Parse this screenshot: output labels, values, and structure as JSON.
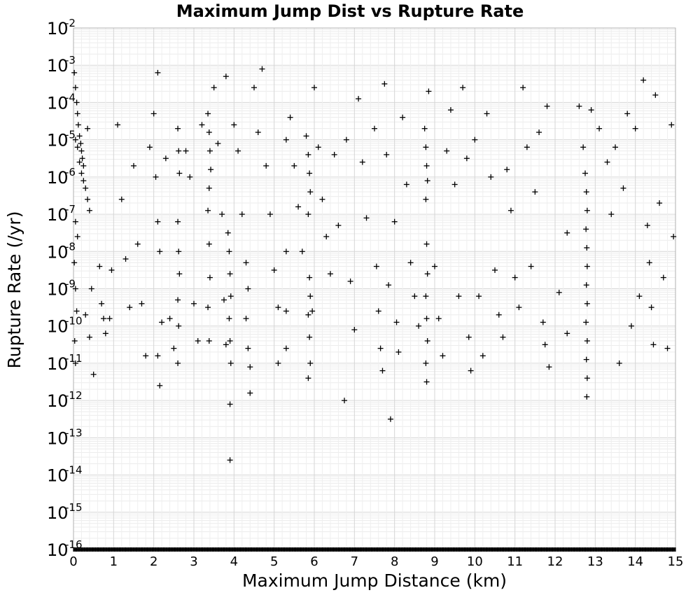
{
  "chart_data": {
    "type": "scatter",
    "title": "Maximum Jump Dist vs Rupture Rate",
    "xlabel": "Maximum Jump Distance (km)",
    "ylabel": "Rupture Rate (/yr)",
    "xlim": [
      0,
      15
    ],
    "ylim_log10": [
      -16,
      -2
    ],
    "y_scale": "log",
    "grid": true,
    "marker": "plus",
    "marker_color": "#000000",
    "x_ticks": [
      "0",
      "1",
      "2",
      "3",
      "4",
      "5",
      "6",
      "7",
      "8",
      "9",
      "10",
      "11",
      "12",
      "13",
      "14",
      "15"
    ],
    "y_ticks": [
      {
        "base": "10",
        "exp": "-2"
      },
      {
        "base": "10",
        "exp": "-3"
      },
      {
        "base": "10",
        "exp": "-4"
      },
      {
        "base": "10",
        "exp": "-5"
      },
      {
        "base": "10",
        "exp": "-6"
      },
      {
        "base": "10",
        "exp": "-7"
      },
      {
        "base": "10",
        "exp": "-8"
      },
      {
        "base": "10",
        "exp": "-9"
      },
      {
        "base": "10",
        "exp": "-10"
      },
      {
        "base": "10",
        "exp": "-11"
      },
      {
        "base": "10",
        "exp": "-12"
      },
      {
        "base": "10",
        "exp": "-13"
      },
      {
        "base": "10",
        "exp": "-14"
      },
      {
        "base": "10",
        "exp": "-15"
      },
      {
        "base": "10",
        "exp": "-16"
      }
    ],
    "points_log10_rate": [
      [
        0.02,
        -3.2
      ],
      [
        0.05,
        -3.6
      ],
      [
        0.08,
        -4.0
      ],
      [
        0.1,
        -4.3
      ],
      [
        0.12,
        -4.6
      ],
      [
        0.15,
        -4.9
      ],
      [
        0.18,
        -5.1
      ],
      [
        0.2,
        -5.3
      ],
      [
        0.22,
        -5.5
      ],
      [
        0.25,
        -5.7
      ],
      [
        0.05,
        -5.0
      ],
      [
        0.1,
        -5.2
      ],
      [
        0.15,
        -5.6
      ],
      [
        0.2,
        -5.9
      ],
      [
        0.25,
        -6.1
      ],
      [
        0.3,
        -6.3
      ],
      [
        0.35,
        -6.6
      ],
      [
        0.4,
        -6.9
      ],
      [
        0.05,
        -7.2
      ],
      [
        0.1,
        -7.6
      ],
      [
        0.02,
        -8.3
      ],
      [
        0.05,
        -9.0
      ],
      [
        0.08,
        -9.6
      ],
      [
        0.03,
        -10.4
      ],
      [
        0.05,
        -11.0
      ],
      [
        0.3,
        -9.7
      ],
      [
        0.45,
        -9.0
      ],
      [
        0.5,
        -11.3
      ],
      [
        0.4,
        -10.3
      ],
      [
        0.35,
        -4.7
      ],
      [
        0.65,
        -8.4
      ],
      [
        0.7,
        -9.4
      ],
      [
        0.75,
        -9.8
      ],
      [
        0.8,
        -10.2
      ],
      [
        0.9,
        -9.8
      ],
      [
        0.95,
        -8.5
      ],
      [
        1.1,
        -4.6
      ],
      [
        1.2,
        -6.6
      ],
      [
        1.3,
        -8.2
      ],
      [
        1.4,
        -9.5
      ],
      [
        1.5,
        -5.7
      ],
      [
        1.6,
        -7.8
      ],
      [
        1.7,
        -9.4
      ],
      [
        1.8,
        -10.8
      ],
      [
        1.9,
        -5.2
      ],
      [
        2.0,
        -4.3
      ],
      [
        2.05,
        -6.0
      ],
      [
        2.1,
        -7.2
      ],
      [
        2.15,
        -8.0
      ],
      [
        2.2,
        -9.9
      ],
      [
        2.1,
        -10.8
      ],
      [
        2.15,
        -11.6
      ],
      [
        2.1,
        -3.2
      ],
      [
        2.3,
        -5.5
      ],
      [
        2.4,
        -9.8
      ],
      [
        2.5,
        -10.6
      ],
      [
        2.6,
        -4.7
      ],
      [
        2.62,
        -5.3
      ],
      [
        2.64,
        -5.9
      ],
      [
        2.6,
        -7.2
      ],
      [
        2.62,
        -8.0
      ],
      [
        2.64,
        -8.6
      ],
      [
        2.6,
        -9.3
      ],
      [
        2.62,
        -10.0
      ],
      [
        2.6,
        -11.0
      ],
      [
        2.8,
        -5.3
      ],
      [
        2.9,
        -6.0
      ],
      [
        3.0,
        -9.4
      ],
      [
        3.1,
        -10.4
      ],
      [
        3.2,
        -4.6
      ],
      [
        3.35,
        -4.3
      ],
      [
        3.38,
        -4.8
      ],
      [
        3.4,
        -5.3
      ],
      [
        3.42,
        -5.8
      ],
      [
        3.38,
        -6.3
      ],
      [
        3.35,
        -6.9
      ],
      [
        3.38,
        -7.8
      ],
      [
        3.4,
        -8.7
      ],
      [
        3.35,
        -9.5
      ],
      [
        3.38,
        -10.4
      ],
      [
        3.5,
        -3.6
      ],
      [
        3.6,
        -5.1
      ],
      [
        3.7,
        -7.0
      ],
      [
        3.75,
        -9.3
      ],
      [
        3.8,
        -10.5
      ],
      [
        3.8,
        -3.3
      ],
      [
        3.85,
        -7.5
      ],
      [
        3.88,
        -8.0
      ],
      [
        3.9,
        -8.6
      ],
      [
        3.92,
        -9.2
      ],
      [
        3.88,
        -9.8
      ],
      [
        3.9,
        -10.4
      ],
      [
        3.92,
        -11.0
      ],
      [
        3.9,
        -12.1
      ],
      [
        3.9,
        -13.6
      ],
      [
        4.0,
        -4.6
      ],
      [
        4.1,
        -5.3
      ],
      [
        4.2,
        -7.0
      ],
      [
        4.3,
        -8.3
      ],
      [
        4.35,
        -9.0
      ],
      [
        4.3,
        -9.8
      ],
      [
        4.35,
        -10.6
      ],
      [
        4.4,
        -11.1
      ],
      [
        4.4,
        -11.8
      ],
      [
        4.5,
        -3.6
      ],
      [
        4.6,
        -4.8
      ],
      [
        4.7,
        -3.1
      ],
      [
        4.8,
        -5.7
      ],
      [
        4.9,
        -7.0
      ],
      [
        5.0,
        -8.5
      ],
      [
        5.1,
        -9.5
      ],
      [
        5.1,
        -11.0
      ],
      [
        5.3,
        -5.0
      ],
      [
        5.3,
        -8.0
      ],
      [
        5.3,
        -9.6
      ],
      [
        5.3,
        -10.6
      ],
      [
        5.4,
        -4.4
      ],
      [
        5.5,
        -5.7
      ],
      [
        5.6,
        -6.8
      ],
      [
        5.7,
        -8.0
      ],
      [
        5.8,
        -4.9
      ],
      [
        5.85,
        -5.4
      ],
      [
        5.88,
        -5.9
      ],
      [
        5.9,
        -6.4
      ],
      [
        5.85,
        -7.0
      ],
      [
        5.88,
        -8.7
      ],
      [
        5.9,
        -9.2
      ],
      [
        5.85,
        -9.7
      ],
      [
        5.88,
        -10.3
      ],
      [
        5.9,
        -11.0
      ],
      [
        5.85,
        -11.4
      ],
      [
        5.95,
        -9.6
      ],
      [
        6.0,
        -3.6
      ],
      [
        6.1,
        -5.2
      ],
      [
        6.2,
        -6.6
      ],
      [
        6.3,
        -7.6
      ],
      [
        6.4,
        -8.6
      ],
      [
        6.5,
        -5.4
      ],
      [
        6.6,
        -7.3
      ],
      [
        6.75,
        -12.0
      ],
      [
        6.8,
        -5.0
      ],
      [
        6.9,
        -8.8
      ],
      [
        7.0,
        -10.1
      ],
      [
        7.1,
        -3.9
      ],
      [
        7.2,
        -5.6
      ],
      [
        7.3,
        -7.1
      ],
      [
        7.5,
        -4.7
      ],
      [
        7.55,
        -8.4
      ],
      [
        7.6,
        -9.6
      ],
      [
        7.65,
        -10.6
      ],
      [
        7.7,
        -11.2
      ],
      [
        7.75,
        -3.5
      ],
      [
        7.8,
        -5.4
      ],
      [
        7.85,
        -8.9
      ],
      [
        7.9,
        -12.5
      ],
      [
        8.0,
        -7.2
      ],
      [
        8.05,
        -9.9
      ],
      [
        8.1,
        -10.7
      ],
      [
        8.2,
        -4.4
      ],
      [
        8.3,
        -6.2
      ],
      [
        8.4,
        -8.3
      ],
      [
        8.5,
        -9.2
      ],
      [
        8.6,
        -10.0
      ],
      [
        8.75,
        -4.7
      ],
      [
        8.78,
        -5.2
      ],
      [
        8.8,
        -5.7
      ],
      [
        8.82,
        -6.1
      ],
      [
        8.78,
        -6.6
      ],
      [
        8.8,
        -7.8
      ],
      [
        8.82,
        -8.6
      ],
      [
        8.78,
        -9.2
      ],
      [
        8.8,
        -9.8
      ],
      [
        8.82,
        -10.4
      ],
      [
        8.78,
        -11.0
      ],
      [
        8.8,
        -11.5
      ],
      [
        8.85,
        -3.7
      ],
      [
        9.0,
        -8.4
      ],
      [
        9.1,
        -9.8
      ],
      [
        9.2,
        -10.8
      ],
      [
        9.3,
        -5.3
      ],
      [
        9.4,
        -4.2
      ],
      [
        9.5,
        -6.2
      ],
      [
        9.6,
        -9.2
      ],
      [
        9.7,
        -3.6
      ],
      [
        9.8,
        -5.5
      ],
      [
        9.85,
        -10.3
      ],
      [
        9.9,
        -11.2
      ],
      [
        10.0,
        -5.0
      ],
      [
        10.1,
        -9.2
      ],
      [
        10.2,
        -10.8
      ],
      [
        10.3,
        -4.3
      ],
      [
        10.4,
        -6.0
      ],
      [
        10.5,
        -8.5
      ],
      [
        10.6,
        -9.7
      ],
      [
        10.7,
        -10.3
      ],
      [
        10.8,
        -5.8
      ],
      [
        10.9,
        -6.9
      ],
      [
        11.0,
        -8.7
      ],
      [
        11.1,
        -9.5
      ],
      [
        11.2,
        -3.6
      ],
      [
        11.3,
        -5.2
      ],
      [
        11.4,
        -8.4
      ],
      [
        11.5,
        -6.4
      ],
      [
        11.6,
        -4.8
      ],
      [
        11.7,
        -9.9
      ],
      [
        11.75,
        -10.5
      ],
      [
        11.8,
        -4.1
      ],
      [
        11.85,
        -11.1
      ],
      [
        12.1,
        -9.1
      ],
      [
        12.3,
        -10.2
      ],
      [
        12.3,
        -7.5
      ],
      [
        12.6,
        -4.1
      ],
      [
        12.7,
        -5.2
      ],
      [
        12.75,
        -5.9
      ],
      [
        12.78,
        -6.4
      ],
      [
        12.8,
        -6.9
      ],
      [
        12.77,
        -7.4
      ],
      [
        12.79,
        -7.9
      ],
      [
        12.8,
        -8.4
      ],
      [
        12.78,
        -8.9
      ],
      [
        12.8,
        -9.4
      ],
      [
        12.77,
        -9.9
      ],
      [
        12.8,
        -10.4
      ],
      [
        12.78,
        -10.9
      ],
      [
        12.8,
        -11.4
      ],
      [
        12.79,
        -11.9
      ],
      [
        12.9,
        -4.2
      ],
      [
        13.1,
        -4.7
      ],
      [
        13.3,
        -5.6
      ],
      [
        13.4,
        -7.0
      ],
      [
        13.5,
        -5.2
      ],
      [
        13.6,
        -11.0
      ],
      [
        13.7,
        -6.3
      ],
      [
        13.8,
        -4.3
      ],
      [
        13.9,
        -10.0
      ],
      [
        14.0,
        -4.7
      ],
      [
        14.1,
        -9.2
      ],
      [
        14.2,
        -3.4
      ],
      [
        14.3,
        -7.3
      ],
      [
        14.35,
        -8.3
      ],
      [
        14.4,
        -9.5
      ],
      [
        14.45,
        -10.5
      ],
      [
        14.5,
        -3.8
      ],
      [
        14.6,
        -6.7
      ],
      [
        14.7,
        -8.7
      ],
      [
        14.8,
        -10.6
      ],
      [
        14.9,
        -4.6
      ],
      [
        14.95,
        -7.6
      ]
    ],
    "baseline_log10_rate": -16
  }
}
